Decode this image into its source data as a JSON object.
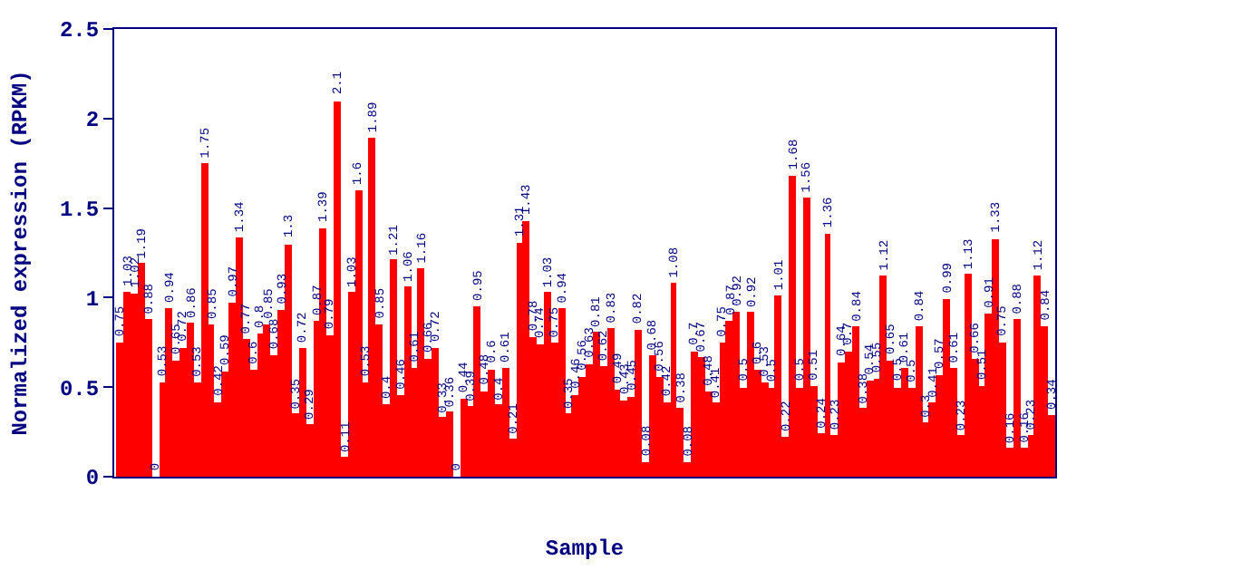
{
  "chart_data": {
    "type": "bar",
    "xlabel": "Sample",
    "ylabel": "Normalized expression (RPKM)",
    "categories": [
      null,
      null,
      null,
      null,
      null,
      null,
      null,
      null,
      null,
      null,
      null,
      null,
      null,
      null,
      null,
      null,
      null,
      null,
      null,
      null,
      null,
      null,
      null,
      null,
      null,
      null,
      null,
      null,
      null,
      null,
      null,
      null,
      null,
      null,
      null,
      null,
      null,
      null,
      null,
      null,
      null,
      null,
      null,
      null,
      null,
      null,
      null,
      null,
      null,
      null,
      null,
      null,
      null,
      null,
      null,
      null,
      null,
      null,
      null,
      null,
      null,
      null,
      null,
      null,
      null,
      null,
      null,
      null,
      null,
      null,
      null,
      null,
      null,
      null,
      null,
      null,
      null,
      null,
      null,
      null,
      null,
      null,
      null,
      null,
      null,
      null,
      null,
      null,
      null,
      null,
      null,
      null,
      null,
      null,
      null,
      null,
      null,
      null,
      null,
      null,
      null,
      null,
      null,
      null,
      null,
      null,
      null,
      null,
      null,
      null,
      null,
      null,
      null,
      null,
      null,
      null,
      null,
      null,
      null,
      null,
      null,
      null,
      null,
      null,
      null,
      null,
      null,
      null,
      null,
      null,
      null,
      null,
      null,
      null
    ],
    "values": [
      0.75,
      1.03,
      1.02,
      1.19,
      0.88,
      0,
      0.53,
      0.94,
      0.65,
      0.72,
      0.86,
      0.53,
      1.75,
      0.85,
      0.42,
      0.59,
      0.97,
      1.34,
      0.77,
      0.6,
      0.8,
      0.85,
      0.68,
      0.93,
      1.3,
      0.35,
      0.72,
      0.29,
      0.87,
      1.39,
      0.79,
      2.1,
      0.11,
      1.03,
      1.6,
      0.53,
      1.89,
      0.85,
      0.4,
      1.21,
      0.46,
      1.06,
      0.61,
      1.16,
      0.66,
      0.72,
      0.33,
      0.36,
      0,
      0.44,
      0.39,
      0.95,
      0.48,
      0.6,
      0.4,
      0.61,
      0.21,
      1.31,
      1.43,
      0.78,
      0.74,
      1.03,
      0.75,
      0.94,
      0.35,
      0.46,
      0.56,
      0.63,
      0.81,
      0.62,
      0.83,
      0.49,
      0.43,
      0.45,
      0.82,
      0.08,
      0.68,
      0.56,
      0.42,
      1.08,
      0.38,
      0.08,
      0.7,
      0.67,
      0.48,
      0.41,
      0.75,
      0.87,
      0.92,
      0.5,
      0.92,
      0.6,
      0.53,
      0.5,
      1.01,
      0.22,
      1.68,
      0.5,
      1.56,
      0.51,
      0.24,
      1.36,
      0.23,
      0.64,
      0.7,
      0.84,
      0.38,
      0.54,
      0.55,
      1.12,
      0.65,
      0.5,
      0.61,
      0.5,
      0.84,
      0.3,
      0.41,
      0.57,
      0.99,
      0.61,
      0.23,
      1.13,
      0.66,
      0.51,
      0.91,
      1.33,
      0.75,
      0.16,
      0.88,
      0.16,
      0.23,
      1.12,
      0.84,
      0.34
    ],
    "color": "#ff0000",
    "ylim": [
      0,
      2.5
    ],
    "yticks": [
      0,
      0.5,
      1,
      1.5,
      2,
      2.5
    ],
    "data_labels": true
  }
}
